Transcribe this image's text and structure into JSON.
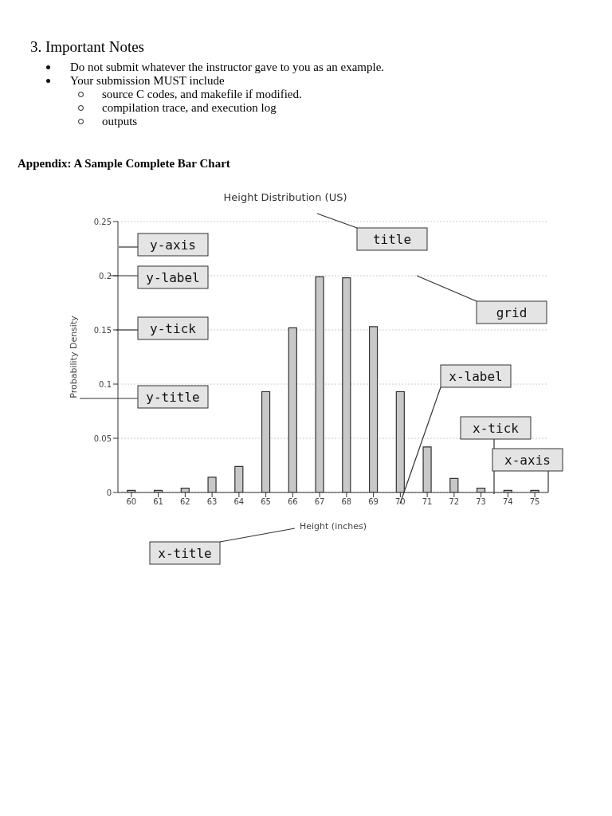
{
  "chart_data": {
    "type": "bar",
    "title": "Height Distribution (US)",
    "xlabel": "Height (inches)",
    "ylabel": "Probability Density",
    "categories": [
      "60",
      "61",
      "62",
      "63",
      "64",
      "65",
      "66",
      "67",
      "68",
      "69",
      "70",
      "71",
      "72",
      "73",
      "74",
      "75"
    ],
    "values": [
      0.002,
      0.002,
      0.004,
      0.014,
      0.024,
      0.093,
      0.152,
      0.199,
      0.198,
      0.153,
      0.093,
      0.042,
      0.013,
      0.004,
      0.002,
      0.002
    ],
    "color": "#c8c8c8",
    "ylim": [
      0,
      0.25
    ],
    "yticks": [
      0,
      0.05,
      0.1,
      0.15,
      0.2,
      0.25
    ],
    "grid": "y",
    "annotations": [
      "3. Important Notes",
      "Do not submit whatever the instructor gave to you as an example.",
      "Your submission MUST include",
      "source C codes, and makefile if modified.",
      "compilation trace, and execution log",
      "outputs",
      "Appendix: A Sample Complete Bar Chart",
      "title",
      "y-axis",
      "y-label",
      "y-tick",
      "y-title",
      "grid",
      "x-label",
      "x-tick",
      "x-title",
      "x-axis"
    ]
  }
}
